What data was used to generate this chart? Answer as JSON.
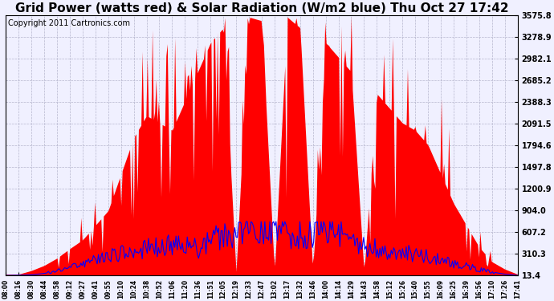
{
  "title": "Grid Power (watts red) & Solar Radiation (W/m2 blue) Thu Oct 27 17:42",
  "copyright": "Copyright 2011 Cartronics.com",
  "yticks": [
    13.4,
    310.3,
    607.2,
    904.0,
    1200.9,
    1497.8,
    1794.6,
    2091.5,
    2388.3,
    2685.2,
    2982.1,
    3278.9,
    3575.8
  ],
  "ymin": 13.4,
  "ymax": 3575.8,
  "bg_color": "#f0f0ff",
  "grid_color": "#b0b0c8",
  "red_color": "#ff0000",
  "blue_color": "#0000ff",
  "title_fontsize": 11,
  "copyright_fontsize": 7
}
